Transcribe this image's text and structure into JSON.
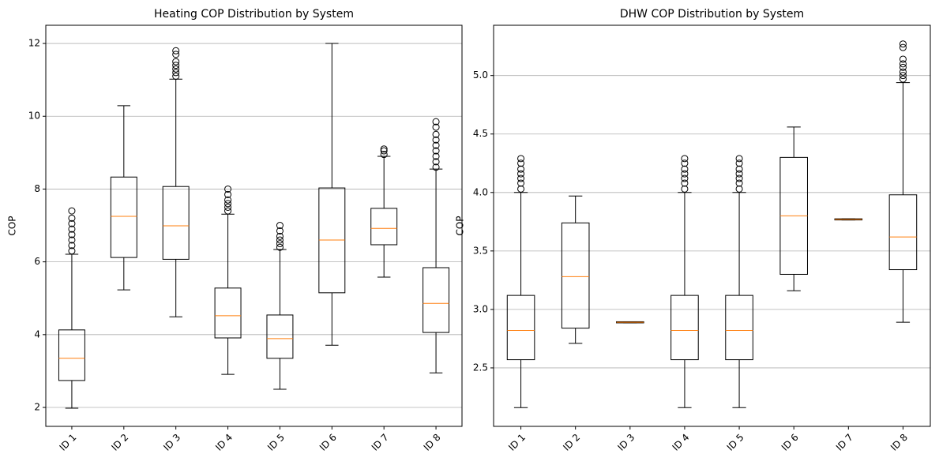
{
  "chart_data": [
    {
      "type": "box",
      "title": "Heating COP Distribution by System",
      "ylabel": "COP",
      "categories": [
        "ID 1",
        "ID 2",
        "ID 3",
        "ID 4",
        "ID 5",
        "ID 6",
        "ID 7",
        "ID 8"
      ],
      "boxes": [
        {
          "whislo": 1.98,
          "q1": 2.74,
          "med": 3.35,
          "q3": 4.13,
          "whishi": 6.21,
          "fliers": [
            6.3,
            6.45,
            6.6,
            6.75,
            6.9,
            7.05,
            7.2,
            7.4
          ]
        },
        {
          "whislo": 5.23,
          "q1": 6.12,
          "med": 7.25,
          "q3": 8.33,
          "whishi": 10.29,
          "fliers": []
        },
        {
          "whislo": 4.49,
          "q1": 6.07,
          "med": 6.99,
          "q3": 8.07,
          "whishi": 11.02,
          "fliers": [
            11.1,
            11.2,
            11.3,
            11.4,
            11.5,
            11.7,
            11.8
          ]
        },
        {
          "whislo": 2.91,
          "q1": 3.91,
          "med": 4.52,
          "q3": 5.28,
          "whishi": 7.31,
          "fliers": [
            7.4,
            7.5,
            7.6,
            7.7,
            7.85,
            8.0
          ]
        },
        {
          "whislo": 2.5,
          "q1": 3.35,
          "med": 3.89,
          "q3": 4.54,
          "whishi": 6.34,
          "fliers": [
            6.4,
            6.5,
            6.6,
            6.7,
            6.85,
            7.0
          ]
        },
        {
          "whislo": 3.71,
          "q1": 5.15,
          "med": 6.6,
          "q3": 8.03,
          "whishi": 12.0,
          "fliers": []
        },
        {
          "whislo": 5.58,
          "q1": 6.47,
          "med": 6.92,
          "q3": 7.47,
          "whishi": 8.9,
          "fliers": [
            8.95,
            9.05,
            9.1
          ]
        },
        {
          "whislo": 2.95,
          "q1": 4.06,
          "med": 4.86,
          "q3": 5.84,
          "whishi": 8.55,
          "fliers": [
            8.6,
            8.75,
            8.9,
            9.05,
            9.2,
            9.35,
            9.5,
            9.7,
            9.85
          ]
        }
      ],
      "box_color": "#000000",
      "median_color": "#ff7f0e",
      "ylim": [
        1.48,
        12.5
      ],
      "yticks": [
        2,
        4,
        6,
        8,
        10,
        12
      ],
      "grid": true
    },
    {
      "type": "box",
      "title": "DHW COP Distribution by System",
      "ylabel": "COP",
      "categories": [
        "ID 1",
        "ID 2",
        "ID 3",
        "ID 4",
        "ID 5",
        "ID 6",
        "ID 7",
        "ID 8"
      ],
      "boxes": [
        {
          "whislo": 2.16,
          "q1": 2.57,
          "med": 2.82,
          "q3": 3.12,
          "whishi": 4.0,
          "fliers": [
            4.03,
            4.08,
            4.12,
            4.16,
            4.2,
            4.25,
            4.29
          ]
        },
        {
          "whislo": 2.71,
          "q1": 2.84,
          "med": 3.28,
          "q3": 3.74,
          "whishi": 3.97,
          "fliers": []
        },
        {
          "whislo": 2.885,
          "q1": 2.885,
          "med": 2.89,
          "q3": 2.895,
          "whishi": 2.895,
          "fliers": []
        },
        {
          "whislo": 2.16,
          "q1": 2.57,
          "med": 2.82,
          "q3": 3.12,
          "whishi": 4.0,
          "fliers": [
            4.03,
            4.08,
            4.12,
            4.16,
            4.2,
            4.25,
            4.29
          ]
        },
        {
          "whislo": 2.16,
          "q1": 2.57,
          "med": 2.82,
          "q3": 3.12,
          "whishi": 4.0,
          "fliers": [
            4.03,
            4.08,
            4.12,
            4.16,
            4.2,
            4.25,
            4.29
          ]
        },
        {
          "whislo": 3.16,
          "q1": 3.3,
          "med": 3.8,
          "q3": 4.3,
          "whishi": 4.56,
          "fliers": []
        },
        {
          "whislo": 3.765,
          "q1": 3.765,
          "med": 3.77,
          "q3": 3.775,
          "whishi": 3.775,
          "fliers": []
        },
        {
          "whislo": 2.89,
          "q1": 3.34,
          "med": 3.62,
          "q3": 3.98,
          "whishi": 4.94,
          "fliers": [
            4.97,
            5.0,
            5.03,
            5.07,
            5.1,
            5.14,
            5.24,
            5.27
          ]
        }
      ],
      "box_color": "#000000",
      "median_color": "#ff7f0e",
      "ylim": [
        2.0,
        5.43
      ],
      "yticks": [
        2.5,
        {
          "value": 3,
          "label": "3.0"
        },
        3.5,
        {
          "value": 4,
          "label": "4.0"
        },
        4.5,
        {
          "value": 5,
          "label": "5.0"
        }
      ],
      "grid": true
    }
  ]
}
